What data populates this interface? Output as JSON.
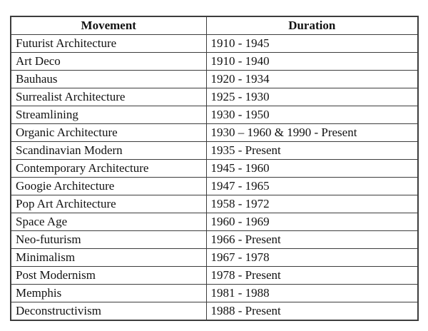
{
  "colors": {
    "background": "#ffffff",
    "border": "#3d3d3d",
    "text": "#121212"
  },
  "table": {
    "headers": {
      "movement": "Movement",
      "duration": "Duration"
    },
    "rows": [
      {
        "movement": "Futurist Architecture",
        "duration": "1910 - 1945"
      },
      {
        "movement": "Art Deco",
        "duration": "1910 - 1940"
      },
      {
        "movement": "Bauhaus",
        "duration": "1920 - 1934"
      },
      {
        "movement": "Surrealist Architecture",
        "duration": "1925 - 1930"
      },
      {
        "movement": "Streamlining",
        "duration": "1930 - 1950"
      },
      {
        "movement": "Organic Architecture",
        "duration": "1930 – 1960 & 1990 - Present"
      },
      {
        "movement": "Scandinavian Modern",
        "duration": "1935 - Present"
      },
      {
        "movement": "Contemporary Architecture",
        "duration": "1945 - 1960"
      },
      {
        "movement": "Googie Architecture",
        "duration": "1947 - 1965"
      },
      {
        "movement": "Pop Art Architecture",
        "duration": "1958 - 1972"
      },
      {
        "movement": "Space Age",
        "duration": "1960 - 1969"
      },
      {
        "movement": "Neo-futurism",
        "duration": "1966 - Present"
      },
      {
        "movement": "Minimalism",
        "duration": "1967 - 1978"
      },
      {
        "movement": "Post Modernism",
        "duration": "1978 - Present"
      },
      {
        "movement": "Memphis",
        "duration": "1981 - 1988"
      },
      {
        "movement": "Deconstructivism",
        "duration": "1988 - Present"
      }
    ]
  }
}
